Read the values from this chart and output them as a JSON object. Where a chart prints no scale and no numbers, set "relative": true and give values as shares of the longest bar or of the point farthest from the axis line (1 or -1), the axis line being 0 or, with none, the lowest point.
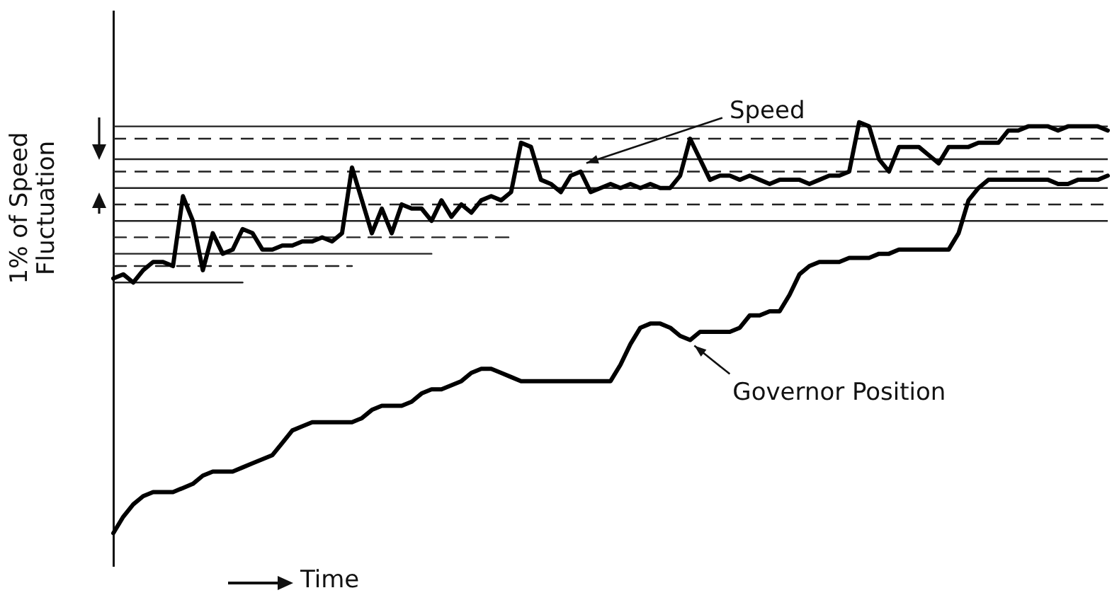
{
  "chart_data": {
    "type": "line",
    "relative": true,
    "xlabel": "Time",
    "ylabel": "1% of Speed Fluctuation",
    "marker": "none",
    "legend": false,
    "categories": [
      null,
      null,
      null,
      null,
      null,
      null,
      null,
      null,
      null,
      null,
      null,
      null,
      null,
      null,
      null,
      null,
      null,
      null,
      null,
      null,
      null,
      null,
      null,
      null,
      null,
      null,
      null,
      null,
      null,
      null,
      null,
      null,
      null,
      null,
      null,
      null,
      null,
      null,
      null,
      null,
      null,
      null,
      null,
      null,
      null,
      null,
      null,
      null,
      null,
      null,
      null,
      null,
      null,
      null,
      null,
      null,
      null,
      null,
      null,
      null,
      null,
      null,
      null,
      null,
      null,
      null,
      null,
      null,
      null,
      null,
      null,
      null,
      null,
      null,
      null,
      null,
      null,
      null,
      null,
      null,
      null,
      null,
      null,
      null,
      null,
      null,
      null,
      null,
      null,
      null,
      null,
      null,
      null,
      null,
      null,
      null,
      null,
      null,
      null,
      null,
      null
    ],
    "ref_lines": [
      {
        "axis": "y",
        "value": 0.99,
        "line_style": "solid",
        "color": "#222222"
      },
      {
        "axis": "y",
        "value": 0.96,
        "line_style": "dashed",
        "color": "#222222"
      },
      {
        "axis": "y",
        "value": 0.91,
        "line_style": "solid",
        "color": "#222222"
      },
      {
        "axis": "y",
        "value": 0.88,
        "line_style": "dashed",
        "color": "#222222"
      },
      {
        "axis": "y",
        "value": 0.84,
        "line_style": "solid",
        "color": "#222222"
      },
      {
        "axis": "y",
        "value": 0.8,
        "line_style": "dashed",
        "color": "#222222"
      },
      {
        "axis": "y",
        "value": 0.76,
        "line_style": "solid",
        "color": "#222222"
      }
    ],
    "series": [
      {
        "name": "Speed",
        "color": "#000000",
        "line_style": "solid",
        "values": [
          0.62,
          0.63,
          0.61,
          0.64,
          0.66,
          0.66,
          0.65,
          0.82,
          0.76,
          0.64,
          0.73,
          0.68,
          0.69,
          0.74,
          0.73,
          0.69,
          0.69,
          0.7,
          0.7,
          0.71,
          0.71,
          0.72,
          0.71,
          0.73,
          0.89,
          0.81,
          0.73,
          0.79,
          0.73,
          0.8,
          0.79,
          0.79,
          0.76,
          0.81,
          0.77,
          0.8,
          0.78,
          0.81,
          0.82,
          0.81,
          0.83,
          0.95,
          0.94,
          0.86,
          0.85,
          0.83,
          0.87,
          0.88,
          0.83,
          0.84,
          0.85,
          0.84,
          0.85,
          0.84,
          0.85,
          0.84,
          0.84,
          0.87,
          0.96,
          0.91,
          0.86,
          0.87,
          0.87,
          0.86,
          0.87,
          0.86,
          0.85,
          0.86,
          0.86,
          0.86,
          0.85,
          0.86,
          0.87,
          0.87,
          0.88,
          1.0,
          0.99,
          0.91,
          0.88,
          0.94,
          0.94,
          0.94,
          0.92,
          0.9,
          0.94,
          0.94,
          0.94,
          0.95,
          0.95,
          0.95,
          0.98,
          0.98,
          0.99,
          0.99,
          0.99,
          0.98,
          0.99,
          0.99,
          0.99,
          0.99,
          0.98
        ]
      },
      {
        "name": "Governor Position",
        "color": "#000000",
        "line_style": "solid",
        "values": [
          0.0,
          0.04,
          0.07,
          0.09,
          0.1,
          0.1,
          0.1,
          0.11,
          0.12,
          0.14,
          0.15,
          0.15,
          0.15,
          0.16,
          0.17,
          0.18,
          0.19,
          0.22,
          0.25,
          0.26,
          0.27,
          0.27,
          0.27,
          0.27,
          0.27,
          0.28,
          0.3,
          0.31,
          0.31,
          0.31,
          0.32,
          0.34,
          0.35,
          0.35,
          0.36,
          0.37,
          0.39,
          0.4,
          0.4,
          0.39,
          0.38,
          0.37,
          0.37,
          0.37,
          0.37,
          0.37,
          0.37,
          0.37,
          0.37,
          0.37,
          0.37,
          0.41,
          0.46,
          0.5,
          0.51,
          0.51,
          0.5,
          0.48,
          0.47,
          0.49,
          0.49,
          0.49,
          0.49,
          0.5,
          0.53,
          0.53,
          0.54,
          0.54,
          0.58,
          0.63,
          0.65,
          0.66,
          0.66,
          0.66,
          0.67,
          0.67,
          0.67,
          0.68,
          0.68,
          0.69,
          0.69,
          0.69,
          0.69,
          0.69,
          0.69,
          0.73,
          0.81,
          0.84,
          0.86,
          0.86,
          0.86,
          0.86,
          0.86,
          0.86,
          0.86,
          0.85,
          0.85,
          0.86,
          0.86,
          0.86,
          0.87
        ]
      },
      {
        "color": "#222222",
        "line_style": "dashed",
        "values": [
          0.72,
          0.72,
          0.72,
          0.72,
          0.72,
          0.72,
          0.72,
          0.72,
          0.72,
          0.72,
          0.72,
          0.72,
          0.72,
          0.72,
          0.72,
          0.72,
          0.72,
          0.72,
          0.72,
          0.72,
          0.72,
          0.72,
          0.72,
          0.72,
          0.72,
          0.72,
          0.72,
          0.72,
          0.72,
          0.72,
          0.72,
          0.72,
          0.72,
          0.72,
          0.72,
          0.72,
          0.72,
          0.72,
          0.72,
          0.72,
          0.72,
          null,
          null,
          null,
          null,
          null,
          null,
          null,
          null,
          null,
          null,
          null,
          null,
          null,
          null,
          null,
          null,
          null,
          null,
          null,
          null,
          null,
          null,
          null,
          null,
          null,
          null,
          null,
          null,
          null,
          null,
          null,
          null,
          null,
          null,
          null,
          null,
          null,
          null,
          null,
          null,
          null,
          null,
          null,
          null,
          null,
          null,
          null,
          null,
          null,
          null,
          null,
          null,
          null,
          null,
          null,
          null,
          null,
          null,
          null,
          null
        ]
      },
      {
        "color": "#222222",
        "line_style": "solid",
        "values": [
          0.68,
          0.68,
          0.68,
          0.68,
          0.68,
          0.68,
          0.68,
          0.68,
          0.68,
          0.68,
          0.68,
          0.68,
          0.68,
          0.68,
          0.68,
          0.68,
          0.68,
          0.68,
          0.68,
          0.68,
          0.68,
          0.68,
          0.68,
          0.68,
          0.68,
          0.68,
          0.68,
          0.68,
          0.68,
          0.68,
          0.68,
          0.68,
          0.68,
          null,
          null,
          null,
          null,
          null,
          null,
          null,
          null,
          null,
          null,
          null,
          null,
          null,
          null,
          null,
          null,
          null,
          null,
          null,
          null,
          null,
          null,
          null,
          null,
          null,
          null,
          null,
          null,
          null,
          null,
          null,
          null,
          null,
          null,
          null,
          null,
          null,
          null,
          null,
          null,
          null,
          null,
          null,
          null,
          null,
          null,
          null,
          null,
          null,
          null,
          null,
          null,
          null,
          null,
          null,
          null,
          null,
          null,
          null,
          null,
          null,
          null,
          null,
          null,
          null,
          null,
          null,
          null
        ]
      },
      {
        "color": "#222222",
        "line_style": "dashed",
        "values": [
          0.65,
          0.65,
          0.65,
          0.65,
          0.65,
          0.65,
          0.65,
          0.65,
          0.65,
          0.65,
          0.65,
          0.65,
          0.65,
          0.65,
          0.65,
          0.65,
          0.65,
          0.65,
          0.65,
          0.65,
          0.65,
          0.65,
          0.65,
          0.65,
          0.65,
          null,
          null,
          null,
          null,
          null,
          null,
          null,
          null,
          null,
          null,
          null,
          null,
          null,
          null,
          null,
          null,
          null,
          null,
          null,
          null,
          null,
          null,
          null,
          null,
          null,
          null,
          null,
          null,
          null,
          null,
          null,
          null,
          null,
          null,
          null,
          null,
          null,
          null,
          null,
          null,
          null,
          null,
          null,
          null,
          null,
          null,
          null,
          null,
          null,
          null,
          null,
          null,
          null,
          null,
          null,
          null,
          null,
          null,
          null,
          null,
          null,
          null,
          null,
          null,
          null,
          null,
          null,
          null,
          null,
          null,
          null,
          null,
          null,
          null,
          null,
          null
        ]
      },
      {
        "color": "#222222",
        "line_style": "solid",
        "values": [
          0.61,
          0.61,
          0.61,
          0.61,
          0.61,
          0.61,
          0.61,
          0.61,
          0.61,
          0.61,
          0.61,
          0.61,
          0.61,
          0.61,
          null,
          null,
          null,
          null,
          null,
          null,
          null,
          null,
          null,
          null,
          null,
          null,
          null,
          null,
          null,
          null,
          null,
          null,
          null,
          null,
          null,
          null,
          null,
          null,
          null,
          null,
          null,
          null,
          null,
          null,
          null,
          null,
          null,
          null,
          null,
          null,
          null,
          null,
          null,
          null,
          null,
          null,
          null,
          null,
          null,
          null,
          null,
          null,
          null,
          null,
          null,
          null,
          null,
          null,
          null,
          null,
          null,
          null,
          null,
          null,
          null,
          null,
          null,
          null,
          null,
          null,
          null,
          null,
          null,
          null,
          null,
          null,
          null,
          null,
          null,
          null,
          null,
          null,
          null,
          null,
          null,
          null,
          null,
          null,
          null,
          null,
          null
        ]
      }
    ]
  }
}
